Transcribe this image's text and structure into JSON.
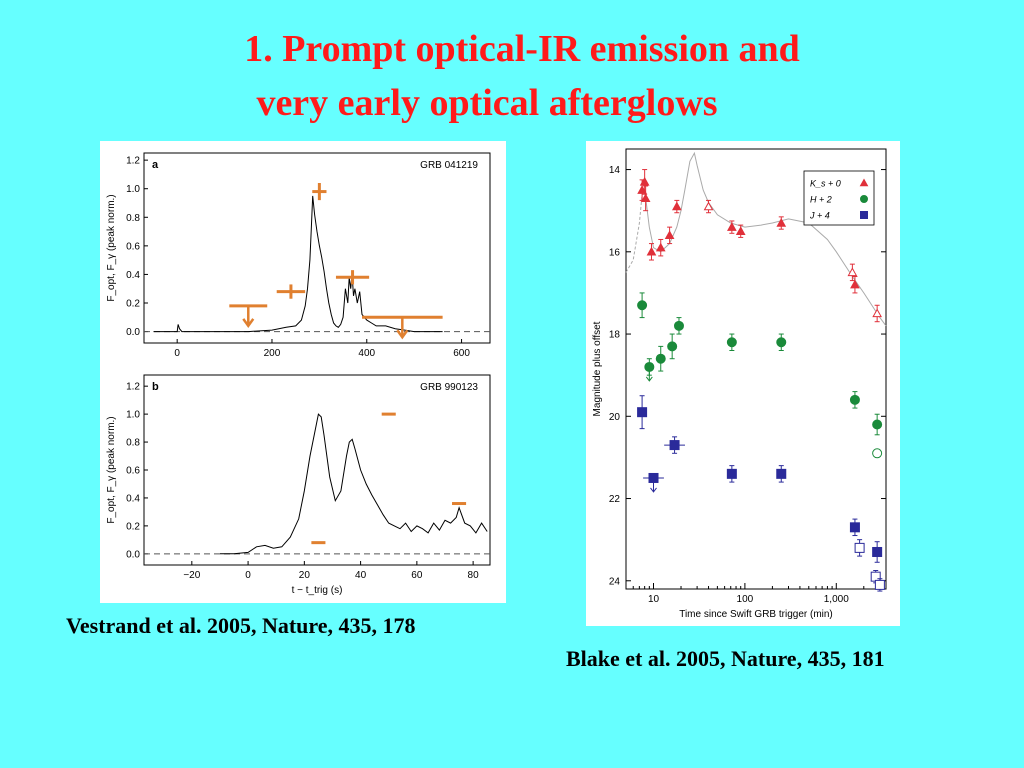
{
  "slide": {
    "title_line1": "1.  Prompt optical-IR emission and",
    "title_line2": "very early optical afterglows",
    "caption_left": "Vestrand et al. 2005, Nature, 435, 178",
    "caption_right": "Blake et al. 2005, Nature, 435, 181",
    "title_color": "#ff1a1a",
    "background_color": "#66ffff"
  },
  "chart_data": [
    {
      "type": "line",
      "panel_label": "a",
      "title": "GRB 041219",
      "xlabel": "",
      "ylabel": "F_opt, F_γ (peak norm.)",
      "xlim": [
        -70,
        660
      ],
      "ylim": [
        -0.08,
        1.25
      ],
      "x_ticks": [
        0,
        200,
        400,
        600
      ],
      "y_ticks": [
        "0.0",
        "0.2",
        "0.4",
        "0.6",
        "0.8",
        "1.0",
        "1.2"
      ],
      "dashed_zero_line": true,
      "gamma_curve": {
        "name": "",
        "color": "#000000",
        "x": [
          -50,
          0,
          2,
          5,
          10,
          20,
          60,
          100,
          150,
          200,
          230,
          250,
          262,
          270,
          275,
          280,
          283,
          286,
          290,
          295,
          300,
          305,
          310,
          315,
          320,
          325,
          330,
          335,
          340,
          345,
          350,
          355,
          360,
          363,
          366,
          369,
          372,
          375,
          380,
          385,
          390,
          395,
          400,
          410,
          420,
          440,
          460,
          480,
          500,
          530,
          560
        ],
        "y": [
          0.0,
          0.0,
          0.05,
          0.02,
          0.0,
          0.0,
          0.0,
          0.0,
          0.0,
          0.01,
          0.03,
          0.04,
          0.08,
          0.18,
          0.3,
          0.5,
          0.72,
          0.95,
          0.82,
          0.7,
          0.6,
          0.52,
          0.42,
          0.3,
          0.2,
          0.12,
          0.06,
          0.04,
          0.03,
          0.05,
          0.1,
          0.3,
          0.2,
          0.38,
          0.3,
          0.4,
          0.25,
          0.3,
          0.2,
          0.28,
          0.12,
          0.1,
          0.08,
          0.06,
          0.04,
          0.04,
          0.02,
          0.01,
          0.0,
          0.0,
          0.0
        ]
      },
      "optical_points": {
        "color": "#e08030",
        "points": [
          {
            "x": 300,
            "y": 0.98,
            "xerr": 15,
            "yerr": 0.06,
            "upper_limit": false
          },
          {
            "x": 240,
            "y": 0.28,
            "xerr": 30,
            "yerr": 0.05,
            "upper_limit": false
          },
          {
            "x": 370,
            "y": 0.38,
            "xerr": 35,
            "yerr": 0.05,
            "upper_limit": false
          },
          {
            "x": 150,
            "y": 0.18,
            "xerr": 40,
            "yerr": 0.0,
            "upper_limit": true
          },
          {
            "x": 475,
            "y": 0.1,
            "xerr": 85,
            "yerr": 0.0,
            "upper_limit": true
          }
        ]
      }
    },
    {
      "type": "line",
      "panel_label": "b",
      "title": "GRB 990123",
      "xlabel": "t − t_trig (s)",
      "ylabel": "F_opt, F_γ (peak norm.)",
      "xlim": [
        -37,
        86
      ],
      "ylim": [
        -0.08,
        1.28
      ],
      "x_ticks": [
        -20,
        0,
        20,
        40,
        60,
        80
      ],
      "x_tick_labels": [
        "−20",
        "0",
        "20",
        "40",
        "60",
        "80"
      ],
      "y_ticks": [
        "0.0",
        "0.2",
        "0.4",
        "0.6",
        "0.8",
        "1.0",
        "1.2"
      ],
      "dashed_zero_line": true,
      "gamma_curve": {
        "name": "",
        "color": "#000000",
        "x": [
          -10,
          -5,
          0,
          3,
          6,
          9,
          12,
          15,
          18,
          20,
          22,
          24,
          25,
          26,
          27,
          29,
          31,
          33,
          35,
          36,
          37,
          38,
          40,
          42,
          44,
          46,
          48,
          50,
          52,
          54,
          56,
          58,
          60,
          62,
          64,
          66,
          68,
          70,
          72,
          74,
          75,
          77,
          79,
          81,
          83,
          85
        ],
        "y": [
          0.0,
          0.0,
          0.01,
          0.05,
          0.06,
          0.04,
          0.05,
          0.12,
          0.25,
          0.45,
          0.7,
          0.9,
          1.0,
          0.98,
          0.85,
          0.55,
          0.38,
          0.45,
          0.7,
          0.8,
          0.82,
          0.75,
          0.6,
          0.5,
          0.42,
          0.35,
          0.28,
          0.22,
          0.2,
          0.18,
          0.22,
          0.16,
          0.2,
          0.18,
          0.15,
          0.22,
          0.17,
          0.24,
          0.22,
          0.26,
          0.33,
          0.22,
          0.2,
          0.15,
          0.22,
          0.16
        ]
      },
      "optical_points": {
        "color": "#e08030",
        "points": [
          {
            "x": 50,
            "y": 1.0,
            "xerr": 2.5,
            "yerr": 0.0
          },
          {
            "x": 75,
            "y": 0.36,
            "xerr": 2.5,
            "yerr": 0.0
          },
          {
            "x": 25,
            "y": 0.08,
            "xerr": 2.5,
            "yerr": 0.0
          }
        ]
      }
    },
    {
      "type": "scatter",
      "xscale": "log",
      "title": "",
      "xlabel": "Time since Swift GRB trigger (min)",
      "ylabel": "Magnitude plus offset",
      "xlim": [
        5,
        3500
      ],
      "ylim": [
        24.2,
        13.5
      ],
      "x_ticks": [
        10,
        100,
        1000
      ],
      "x_tick_labels": [
        "10",
        "100",
        "1,000"
      ],
      "y_ticks": [
        14,
        16,
        18,
        20,
        22,
        24
      ],
      "legend_placement": "top-right",
      "legend": [
        {
          "label": "K_s + 0",
          "marker": "triangle",
          "color": "#e0303a"
        },
        {
          "label": "H + 2",
          "marker": "circle",
          "color": "#1a8a3a"
        },
        {
          "label": "J + 4",
          "marker": "square",
          "color": "#2a2a9a"
        }
      ],
      "model_curve": {
        "color": "#aaaaaa",
        "style": "dashed-then-solid",
        "x": [
          5,
          6,
          7,
          7.5,
          8,
          9,
          10,
          12,
          15,
          18,
          20,
          22,
          25,
          28,
          30,
          35,
          40,
          50,
          70,
          100,
          150,
          200,
          300,
          500,
          800,
          1000,
          1500,
          2000,
          3000,
          3500
        ],
        "y": [
          16.5,
          16.2,
          15.3,
          14.6,
          14.5,
          15.4,
          15.9,
          16.0,
          15.8,
          15.4,
          15.0,
          14.5,
          13.8,
          13.6,
          13.9,
          14.5,
          14.8,
          15.1,
          15.3,
          15.4,
          15.35,
          15.3,
          15.2,
          15.3,
          15.7,
          16.0,
          16.6,
          17.0,
          17.6,
          17.8
        ]
      },
      "series": [
        {
          "name": "K_s + 0",
          "color": "#e0303a",
          "marker": "triangle",
          "points": [
            {
              "x": 7.5,
              "y": 14.5,
              "yerr": 0.25,
              "filled": true
            },
            {
              "x": 8,
              "y": 14.3,
              "yerr": 0.3,
              "filled": true
            },
            {
              "x": 8.2,
              "y": 14.7,
              "yerr": 0.3,
              "filled": true
            },
            {
              "x": 9.5,
              "y": 16.0,
              "yerr": 0.2,
              "filled": true
            },
            {
              "x": 12,
              "y": 15.9,
              "yerr": 0.2,
              "filled": true
            },
            {
              "x": 15,
              "y": 15.6,
              "yerr": 0.2,
              "filled": true
            },
            {
              "x": 18,
              "y": 14.9,
              "yerr": 0.15,
              "filled": true
            },
            {
              "x": 40,
              "y": 14.9,
              "yerr": 0.15,
              "filled": false
            },
            {
              "x": 72,
              "y": 15.4,
              "yerr": 0.15,
              "filled": true
            },
            {
              "x": 90,
              "y": 15.5,
              "yerr": 0.15,
              "filled": true
            },
            {
              "x": 250,
              "y": 15.3,
              "yerr": 0.15,
              "filled": true
            },
            {
              "x": 1500,
              "y": 16.5,
              "yerr": 0.2,
              "filled": false
            },
            {
              "x": 1600,
              "y": 16.8,
              "yerr": 0.2,
              "filled": true
            },
            {
              "x": 2800,
              "y": 17.5,
              "yerr": 0.2,
              "filled": false
            }
          ]
        },
        {
          "name": "H + 2",
          "color": "#1a8a3a",
          "marker": "circle",
          "points": [
            {
              "x": 7.5,
              "y": 17.3,
              "yerr": 0.3,
              "filled": true
            },
            {
              "x": 9,
              "y": 18.8,
              "yerr": 0.2,
              "filled": true,
              "upper_limit": true
            },
            {
              "x": 12,
              "y": 18.6,
              "yerr": 0.3,
              "filled": true
            },
            {
              "x": 16,
              "y": 18.3,
              "yerr": 0.3,
              "filled": true
            },
            {
              "x": 19,
              "y": 17.8,
              "yerr": 0.2,
              "filled": true
            },
            {
              "x": 72,
              "y": 18.2,
              "yerr": 0.2,
              "filled": true
            },
            {
              "x": 250,
              "y": 18.2,
              "yerr": 0.2,
              "filled": true
            },
            {
              "x": 1600,
              "y": 19.6,
              "yerr": 0.2,
              "filled": true
            },
            {
              "x": 2800,
              "y": 20.2,
              "yerr": 0.25,
              "filled": true
            },
            {
              "x": 2800,
              "y": 20.9,
              "yerr": 0.0,
              "filled": false
            }
          ]
        },
        {
          "name": "J + 4",
          "color": "#2a2a9a",
          "marker": "square",
          "points": [
            {
              "x": 7.5,
              "y": 19.9,
              "yerr": 0.4,
              "filled": true
            },
            {
              "x": 10,
              "y": 21.5,
              "yerr": 0.0,
              "xerr_factor": 1.3,
              "filled": true,
              "upper_limit": true
            },
            {
              "x": 17,
              "y": 20.7,
              "yerr": 0.2,
              "xerr_factor": 1.3,
              "filled": true
            },
            {
              "x": 72,
              "y": 21.4,
              "yerr": 0.2,
              "filled": true
            },
            {
              "x": 250,
              "y": 21.4,
              "yerr": 0.2,
              "filled": true
            },
            {
              "x": 1600,
              "y": 22.7,
              "yerr": 0.2,
              "filled": true
            },
            {
              "x": 1800,
              "y": 23.2,
              "yerr": 0.2,
              "filled": false
            },
            {
              "x": 2800,
              "y": 23.3,
              "yerr": 0.25,
              "filled": true
            },
            {
              "x": 2700,
              "y": 23.9,
              "yerr": 0.15,
              "filled": false
            },
            {
              "x": 3000,
              "y": 24.1,
              "yerr": 0.15,
              "filled": false
            }
          ]
        }
      ]
    }
  ]
}
